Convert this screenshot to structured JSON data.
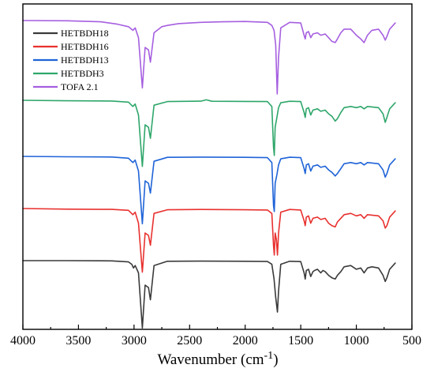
{
  "chart_data": {
    "type": "line",
    "title": "",
    "xlabel": "Wavenumber (cm",
    "xlabel_sup": "-1",
    "xlabel_suffix": ")",
    "ylabel": "",
    "xlim": [
      4000,
      500
    ],
    "x_reversed": true,
    "x_ticks": [
      4000,
      3500,
      3000,
      2500,
      2000,
      1500,
      1000,
      500
    ],
    "x_tick_labels": [
      "4000",
      "3500",
      "3000",
      "2500",
      "2000",
      "1500",
      "1000",
      "500"
    ],
    "y_ticks_shown": false,
    "grid": false,
    "legend_position": "top-left",
    "legend": [
      {
        "name": "HETBDH18",
        "color": "#3a3a3a"
      },
      {
        "name": "HETBDH16",
        "color": "#e8312f"
      },
      {
        "name": "HETBDH13",
        "color": "#1f63d8"
      },
      {
        "name": "HETBDH3",
        "color": "#2ea66a"
      },
      {
        "name": "TOFA 2.1",
        "color": "#a65fe0"
      }
    ],
    "series": [
      {
        "name": "HETBDH18",
        "color": "#3a3a3a",
        "points": [
          [
            4000,
            100
          ],
          [
            3600,
            100
          ],
          [
            3200,
            99.8
          ],
          [
            3050,
            99
          ],
          [
            3020,
            97
          ],
          [
            3005,
            94
          ],
          [
            2990,
            96
          ],
          [
            2960,
            90
          ],
          [
            2925,
            45
          ],
          [
            2900,
            80
          ],
          [
            2870,
            78
          ],
          [
            2853,
            68
          ],
          [
            2820,
            96
          ],
          [
            2700,
            99.5
          ],
          [
            2400,
            99.6
          ],
          [
            2000,
            99.5
          ],
          [
            1800,
            99.3
          ],
          [
            1760,
            97
          ],
          [
            1740,
            85
          ],
          [
            1725,
            70
          ],
          [
            1710,
            58
          ],
          [
            1700,
            75
          ],
          [
            1680,
            97
          ],
          [
            1600,
            99.5
          ],
          [
            1500,
            99.2
          ],
          [
            1470,
            90
          ],
          [
            1460,
            85
          ],
          [
            1450,
            92
          ],
          [
            1430,
            93
          ],
          [
            1410,
            87
          ],
          [
            1390,
            91
          ],
          [
            1375,
            92
          ],
          [
            1350,
            93
          ],
          [
            1320,
            90
          ],
          [
            1300,
            92
          ],
          [
            1280,
            91
          ],
          [
            1250,
            88
          ],
          [
            1220,
            86
          ],
          [
            1190,
            85
          ],
          [
            1170,
            88
          ],
          [
            1140,
            91
          ],
          [
            1110,
            95
          ],
          [
            1050,
            96
          ],
          [
            1000,
            93
          ],
          [
            960,
            94
          ],
          [
            930,
            90
          ],
          [
            900,
            94
          ],
          [
            860,
            95
          ],
          [
            800,
            94
          ],
          [
            760,
            88
          ],
          [
            740,
            83
          ],
          [
            725,
            86
          ],
          [
            700,
            93
          ],
          [
            650,
            98
          ]
        ]
      },
      {
        "name": "HETBDH16",
        "color": "#e8312f",
        "points": [
          [
            4000,
            100
          ],
          [
            3600,
            99.5
          ],
          [
            3200,
            99.3
          ],
          [
            3050,
            98.5
          ],
          [
            3010,
            95
          ],
          [
            2990,
            97
          ],
          [
            2960,
            88
          ],
          [
            2925,
            48
          ],
          [
            2900,
            80
          ],
          [
            2870,
            78
          ],
          [
            2853,
            70
          ],
          [
            2820,
            96
          ],
          [
            2700,
            99
          ],
          [
            2400,
            99.2
          ],
          [
            2000,
            99
          ],
          [
            1800,
            98.8
          ],
          [
            1760,
            96
          ],
          [
            1745,
            70
          ],
          [
            1738,
            62
          ],
          [
            1730,
            80
          ],
          [
            1720,
            75
          ],
          [
            1710,
            62
          ],
          [
            1700,
            80
          ],
          [
            1680,
            97
          ],
          [
            1600,
            99.2
          ],
          [
            1500,
            98.8
          ],
          [
            1470,
            90
          ],
          [
            1460,
            86
          ],
          [
            1450,
            93
          ],
          [
            1430,
            94
          ],
          [
            1410,
            88
          ],
          [
            1390,
            92
          ],
          [
            1350,
            93
          ],
          [
            1320,
            91
          ],
          [
            1280,
            92
          ],
          [
            1250,
            88
          ],
          [
            1220,
            86
          ],
          [
            1190,
            85
          ],
          [
            1170,
            89
          ],
          [
            1140,
            92
          ],
          [
            1110,
            95
          ],
          [
            1050,
            96
          ],
          [
            1000,
            94
          ],
          [
            960,
            95
          ],
          [
            930,
            92
          ],
          [
            900,
            95
          ],
          [
            800,
            94
          ],
          [
            760,
            90
          ],
          [
            740,
            84
          ],
          [
            725,
            86
          ],
          [
            700,
            93
          ],
          [
            650,
            98
          ]
        ]
      },
      {
        "name": "HETBDH13",
        "color": "#1f63d8",
        "points": [
          [
            4000,
            100
          ],
          [
            3600,
            99.7
          ],
          [
            3200,
            99.5
          ],
          [
            3050,
            98.5
          ],
          [
            3010,
            95
          ],
          [
            2990,
            97
          ],
          [
            2960,
            88
          ],
          [
            2925,
            45
          ],
          [
            2900,
            80
          ],
          [
            2870,
            78
          ],
          [
            2853,
            70
          ],
          [
            2820,
            96
          ],
          [
            2700,
            99.2
          ],
          [
            2400,
            99.4
          ],
          [
            2000,
            99.2
          ],
          [
            1800,
            99
          ],
          [
            1760,
            95
          ],
          [
            1745,
            60
          ],
          [
            1738,
            55
          ],
          [
            1730,
            78
          ],
          [
            1715,
            85
          ],
          [
            1700,
            93
          ],
          [
            1680,
            98
          ],
          [
            1600,
            99.3
          ],
          [
            1500,
            99
          ],
          [
            1470,
            90
          ],
          [
            1460,
            86
          ],
          [
            1450,
            93
          ],
          [
            1430,
            94
          ],
          [
            1410,
            88
          ],
          [
            1390,
            92
          ],
          [
            1350,
            93
          ],
          [
            1320,
            91
          ],
          [
            1280,
            92
          ],
          [
            1250,
            89
          ],
          [
            1220,
            87
          ],
          [
            1190,
            84
          ],
          [
            1170,
            86
          ],
          [
            1140,
            90
          ],
          [
            1110,
            94
          ],
          [
            1050,
            95
          ],
          [
            1000,
            94
          ],
          [
            960,
            95
          ],
          [
            930,
            93
          ],
          [
            900,
            95
          ],
          [
            800,
            94
          ],
          [
            760,
            89
          ],
          [
            740,
            83
          ],
          [
            725,
            86
          ],
          [
            700,
            93
          ],
          [
            650,
            98
          ]
        ]
      },
      {
        "name": "HETBDH3",
        "color": "#2ea66a",
        "points": [
          [
            4000,
            100
          ],
          [
            3600,
            99.6
          ],
          [
            3200,
            99.4
          ],
          [
            3050,
            98.5
          ],
          [
            3010,
            95
          ],
          [
            2990,
            97
          ],
          [
            2960,
            88
          ],
          [
            2925,
            46
          ],
          [
            2900,
            80
          ],
          [
            2870,
            78
          ],
          [
            2853,
            69
          ],
          [
            2820,
            96
          ],
          [
            2700,
            99
          ],
          [
            2400,
            99.3
          ],
          [
            2350,
            100.4
          ],
          [
            2300,
            99.2
          ],
          [
            2000,
            99.1
          ],
          [
            1800,
            99
          ],
          [
            1760,
            95
          ],
          [
            1745,
            62
          ],
          [
            1738,
            55
          ],
          [
            1730,
            78
          ],
          [
            1715,
            86
          ],
          [
            1700,
            94
          ],
          [
            1680,
            98
          ],
          [
            1600,
            99.2
          ],
          [
            1500,
            99
          ],
          [
            1470,
            90
          ],
          [
            1460,
            86
          ],
          [
            1450,
            93
          ],
          [
            1430,
            94
          ],
          [
            1410,
            88
          ],
          [
            1390,
            92
          ],
          [
            1350,
            93
          ],
          [
            1320,
            91
          ],
          [
            1280,
            92
          ],
          [
            1250,
            89
          ],
          [
            1220,
            87
          ],
          [
            1190,
            83
          ],
          [
            1170,
            85
          ],
          [
            1140,
            90
          ],
          [
            1110,
            94
          ],
          [
            1050,
            95
          ],
          [
            1000,
            94
          ],
          [
            960,
            95
          ],
          [
            930,
            93
          ],
          [
            900,
            95
          ],
          [
            800,
            94
          ],
          [
            760,
            89
          ],
          [
            740,
            82
          ],
          [
            725,
            86
          ],
          [
            700,
            93
          ],
          [
            650,
            98
          ]
        ]
      },
      {
        "name": "TOFA 2.1",
        "color": "#a65fe0",
        "points": [
          [
            4000,
            100
          ],
          [
            3600,
            99.8
          ],
          [
            3300,
            99
          ],
          [
            3150,
            97
          ],
          [
            3050,
            95
          ],
          [
            3010,
            92
          ],
          [
            2990,
            94
          ],
          [
            2960,
            86
          ],
          [
            2925,
            45
          ],
          [
            2900,
            78
          ],
          [
            2870,
            76
          ],
          [
            2853,
            66
          ],
          [
            2820,
            90
          ],
          [
            2750,
            95
          ],
          [
            2700,
            96
          ],
          [
            2600,
            97.5
          ],
          [
            2400,
            98.5
          ],
          [
            2200,
            99
          ],
          [
            2000,
            99.2
          ],
          [
            1800,
            98.5
          ],
          [
            1760,
            96
          ],
          [
            1740,
            92
          ],
          [
            1725,
            80
          ],
          [
            1712,
            40
          ],
          [
            1700,
            70
          ],
          [
            1680,
            94
          ],
          [
            1600,
            98.5
          ],
          [
            1500,
            98
          ],
          [
            1470,
            88
          ],
          [
            1460,
            85
          ],
          [
            1450,
            90
          ],
          [
            1430,
            91
          ],
          [
            1410,
            86
          ],
          [
            1390,
            89
          ],
          [
            1350,
            90
          ],
          [
            1320,
            88
          ],
          [
            1280,
            89
          ],
          [
            1250,
            86
          ],
          [
            1220,
            83
          ],
          [
            1190,
            82
          ],
          [
            1170,
            85
          ],
          [
            1140,
            90
          ],
          [
            1110,
            93
          ],
          [
            1050,
            93
          ],
          [
            1000,
            88
          ],
          [
            960,
            85
          ],
          [
            930,
            82
          ],
          [
            900,
            88
          ],
          [
            860,
            92
          ],
          [
            800,
            93
          ],
          [
            760,
            88
          ],
          [
            740,
            84
          ],
          [
            725,
            87
          ],
          [
            700,
            93
          ],
          [
            650,
            98
          ]
        ]
      }
    ]
  }
}
